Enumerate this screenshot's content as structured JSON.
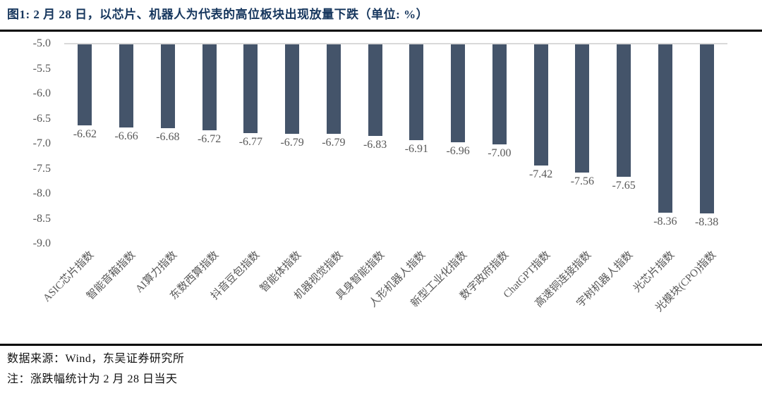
{
  "figure": {
    "title": "图1:  2 月 28 日，以芯片、机器人为代表的高位板块出现放量下跌（单位:  %）"
  },
  "chart_data": {
    "type": "bar",
    "title": "2月28日以芯片、机器人为代表的高位板块出现放量下跌",
    "unit": "%",
    "xlabel": "",
    "ylabel": "",
    "categories": [
      "ASIC芯片指数",
      "智能音箱指数",
      "AI算力指数",
      "东数西算指数",
      "抖音豆包指数",
      "智能体指数",
      "机器视觉指数",
      "具身智能指数",
      "人形机器人指数",
      "新型工业化指数",
      "数字政府指数",
      "ChatGPT指数",
      "高速铜连接指数",
      "宇树机器人指数",
      "光芯片指数",
      "光模块(CPO)指数"
    ],
    "values": [
      -6.62,
      -6.66,
      -6.68,
      -6.72,
      -6.77,
      -6.79,
      -6.79,
      -6.83,
      -6.91,
      -6.96,
      -7.0,
      -7.42,
      -7.56,
      -7.65,
      -8.36,
      -8.38
    ],
    "value_labels": [
      "-6.62",
      "-6.66",
      "-6.68",
      "-6.72",
      "-6.77",
      "-6.79",
      "-6.79",
      "-6.83",
      "-6.91",
      "-6.96",
      "-7.00",
      "-7.42",
      "-7.56",
      "-7.65",
      "-8.36",
      "-8.38"
    ],
    "ylim": [
      -9.0,
      -5.0
    ],
    "ytick_labels": [
      "-5.0",
      "-5.5",
      "-6.0",
      "-6.5",
      "-7.0",
      "-7.5",
      "-8.0",
      "-8.5",
      "-9.0"
    ],
    "baseline_value": -5.0,
    "gridlines": "baseline-only",
    "legend_position": "none",
    "bar_color": "#44546A",
    "gridline_color": "#D9D9D9",
    "label_color": "#595959"
  },
  "footer": {
    "source": "数据来源：Wind，东吴证券研究所",
    "note": "注：涨跌幅统计为 2 月 28 日当天"
  },
  "colors": {
    "title_text": "#17375E",
    "divider": "#000000"
  }
}
